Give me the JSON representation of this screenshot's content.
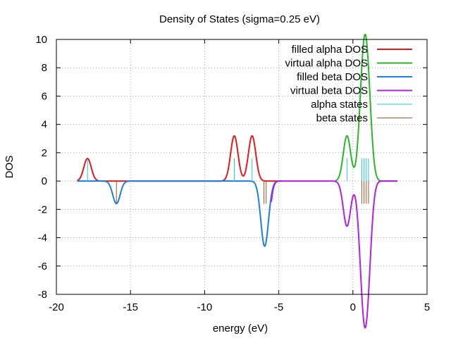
{
  "chart_data": {
    "type": "line",
    "title": "Density of States (sigma=0.25 eV)",
    "xlabel": "energy (eV)",
    "ylabel": "DOS",
    "xlim": [
      -20,
      5
    ],
    "ylim": [
      -8,
      10
    ],
    "xticks": [
      -20,
      -15,
      -10,
      -5,
      0,
      5
    ],
    "yticks": [
      -8,
      -6,
      -4,
      -2,
      0,
      2,
      4,
      6,
      8,
      10
    ],
    "grid": true,
    "legend_position": "top-right",
    "sigma": 0.25,
    "x_range": [
      -18.6,
      3.0
    ],
    "series": [
      {
        "name": "filled alpha DOS",
        "color": "#e41a1c",
        "sign": 1,
        "x_range": [
          -18.6,
          -4.8
        ],
        "levels": [
          -17.9,
          -8.0,
          -8.0,
          -6.8,
          -6.8
        ]
      },
      {
        "name": "virtual alpha DOS",
        "color": "#2ab52a",
        "sign": 1,
        "x_range": [
          -1.2,
          3.0
        ],
        "levels": [
          -0.4,
          -0.4,
          0.6,
          0.6,
          0.75,
          0.75,
          0.9,
          0.9,
          1.05,
          1.05
        ]
      },
      {
        "name": "filled beta DOS",
        "color": "#1f7de0",
        "sign": -1,
        "x_range": [
          -18.6,
          -4.8
        ],
        "levels": [
          -15.95,
          -6.0,
          -6.0,
          -5.85
        ]
      },
      {
        "name": "virtual beta DOS",
        "color": "#b11fe8",
        "sign": -1,
        "x_range": [
          -5.5,
          3.0
        ],
        "levels": [
          -6.0,
          -6.0,
          -5.9,
          -5.85,
          -0.4,
          -0.4,
          0.6,
          0.6,
          0.75,
          0.75,
          0.9,
          0.9,
          1.05,
          1.05
        ]
      },
      {
        "name": "alpha states",
        "color": "#22cccc",
        "kind": "sticks",
        "height": 1.6,
        "levels": [
          -17.9,
          -8.0,
          -6.8,
          -0.4,
          0.6,
          0.75,
          0.9,
          1.05
        ]
      },
      {
        "name": "beta states",
        "color": "#a0522d",
        "kind": "sticks",
        "height": -1.6,
        "levels": [
          -15.95,
          -6.0,
          -5.85,
          0.6,
          0.75,
          0.9,
          1.05
        ]
      }
    ]
  }
}
